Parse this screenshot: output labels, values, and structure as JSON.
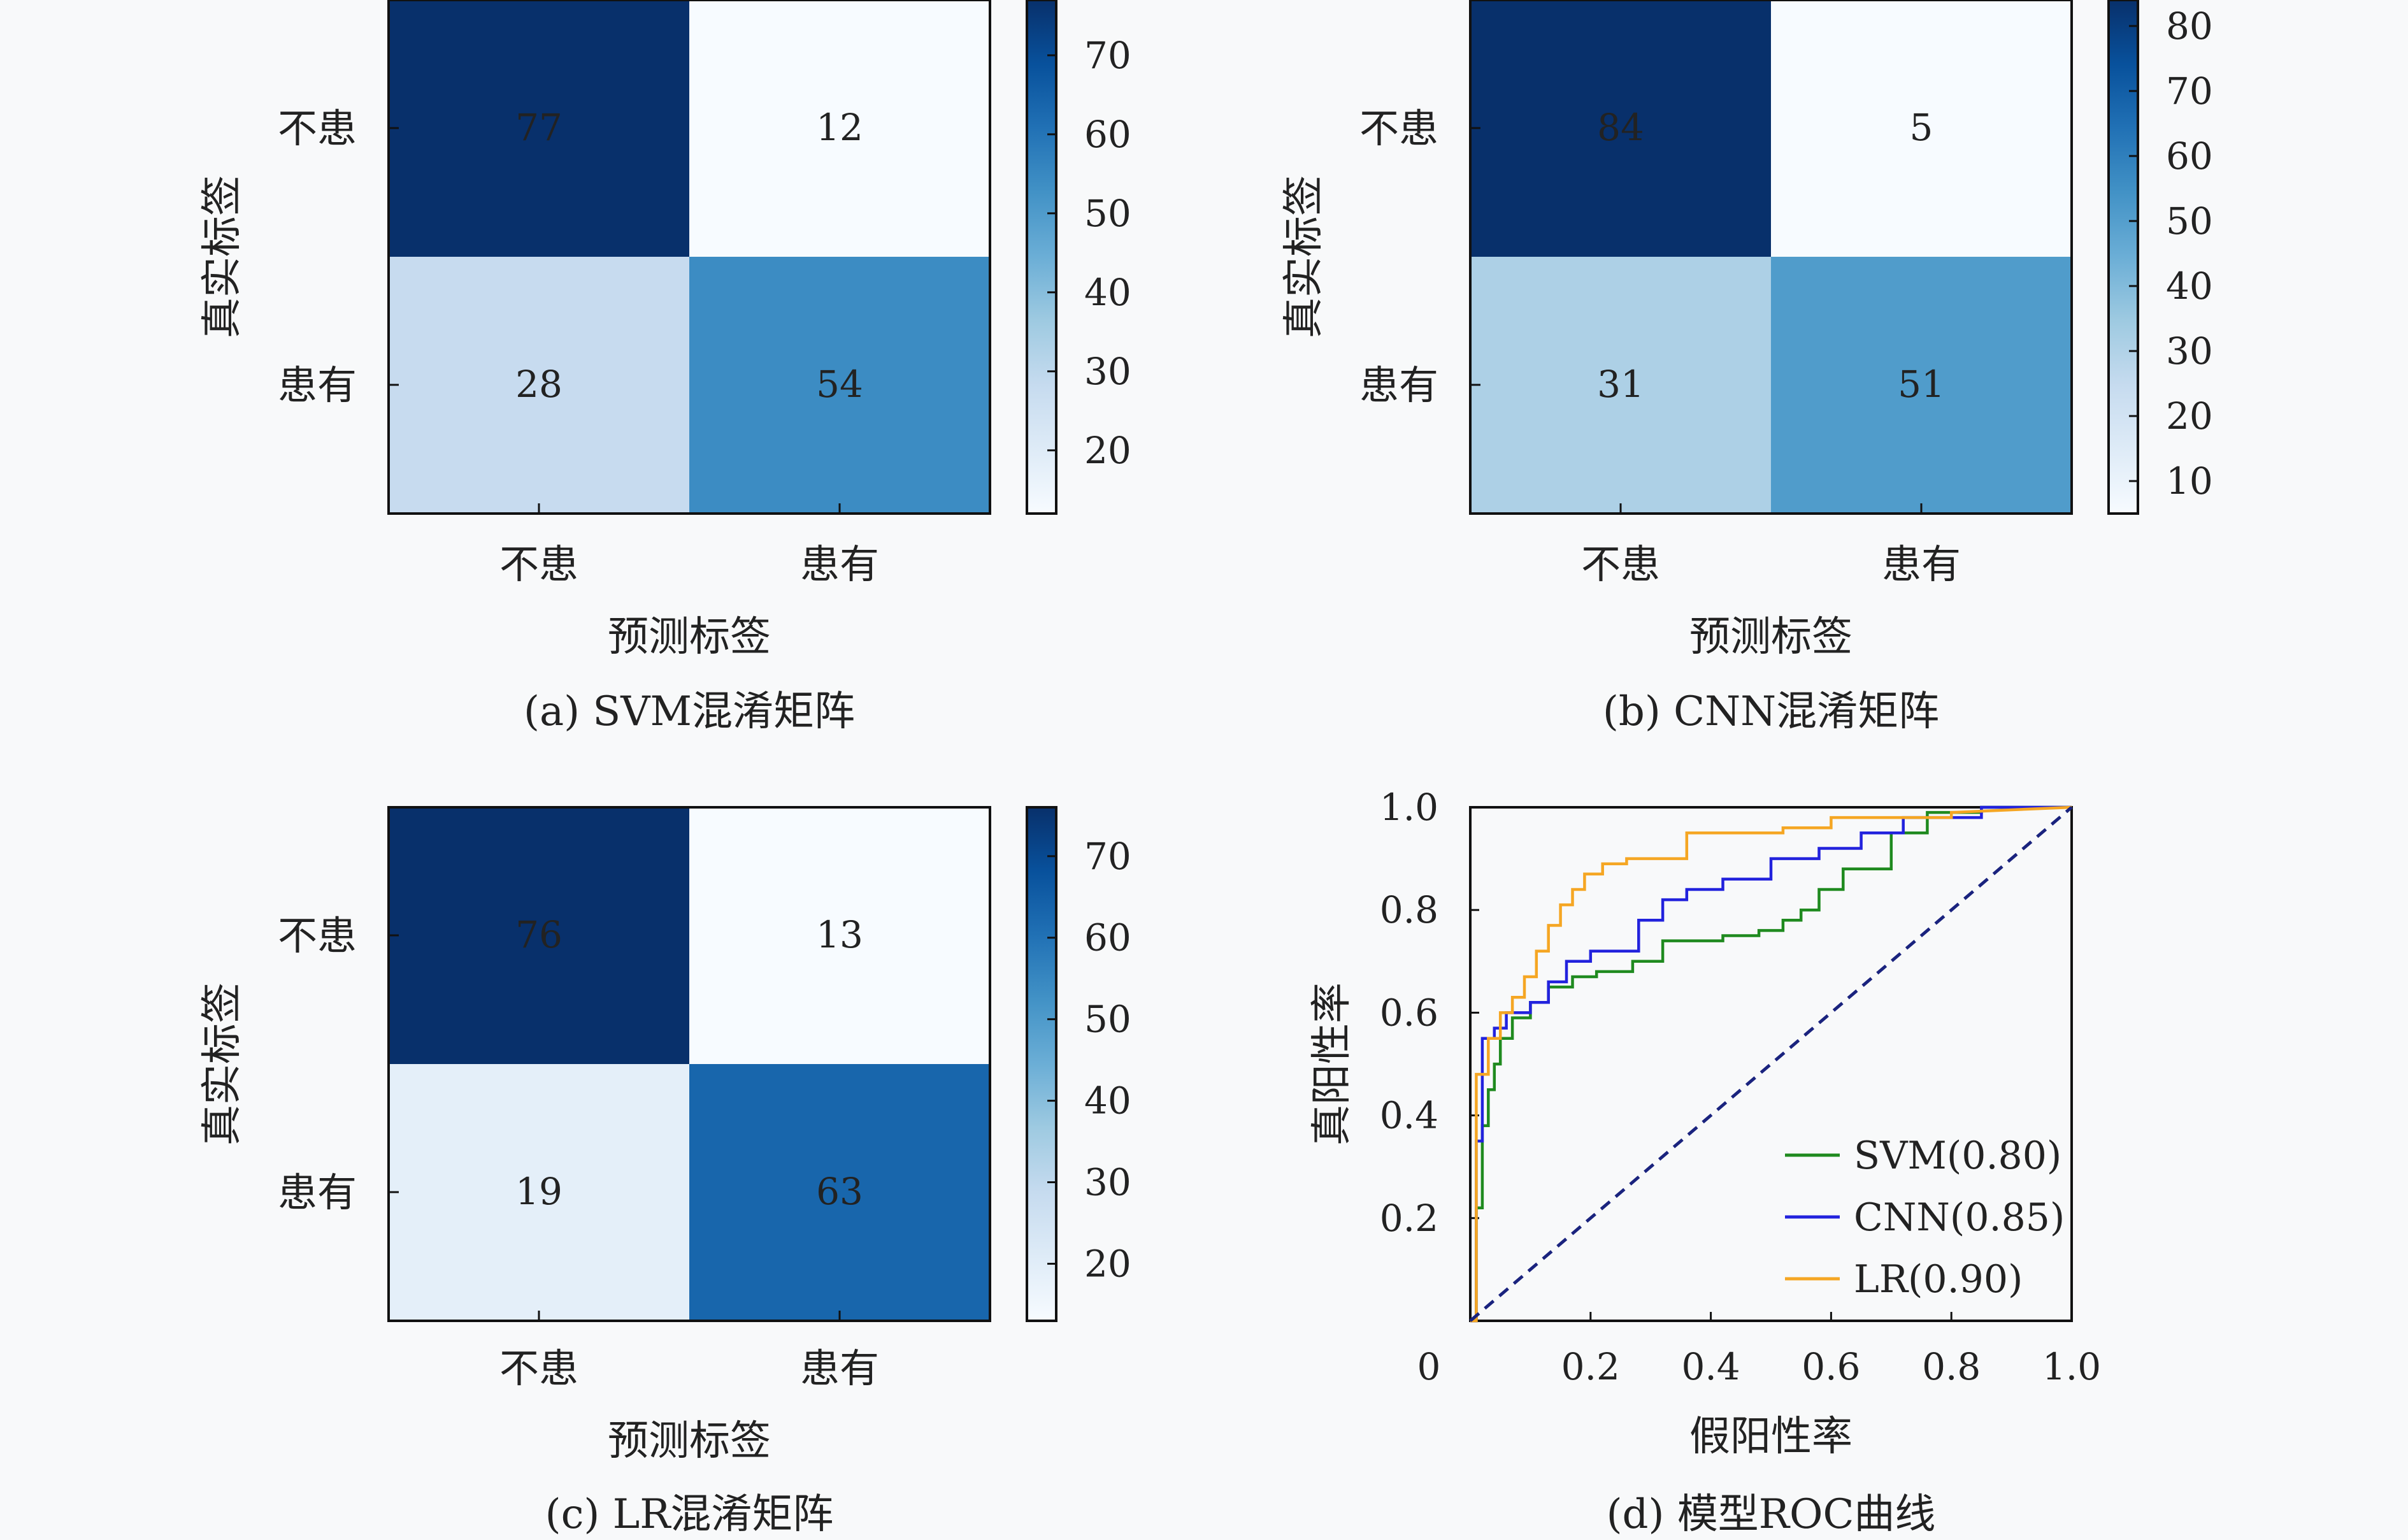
{
  "chart_data": [
    {
      "type": "heatmap",
      "caption": "(a) SVM混淆矩阵",
      "xlabel": "预测标签",
      "ylabel": "真实标签",
      "x_categories": [
        "不患",
        "患有"
      ],
      "y_categories": [
        "不患",
        "患有"
      ],
      "values": [
        [
          77,
          12
        ],
        [
          28,
          54
        ]
      ],
      "colorbar_ticks": [
        20,
        30,
        40,
        50,
        60,
        70
      ],
      "vmin": 12,
      "vmax": 77,
      "colormap": "Blues"
    },
    {
      "type": "heatmap",
      "caption": "(b) CNN混淆矩阵",
      "xlabel": "预测标签",
      "ylabel": "真实标签",
      "x_categories": [
        "不患",
        "患有"
      ],
      "y_categories": [
        "不患",
        "患有"
      ],
      "values": [
        [
          84,
          5
        ],
        [
          31,
          51
        ]
      ],
      "colorbar_ticks": [
        10,
        20,
        30,
        40,
        50,
        60,
        70,
        80
      ],
      "vmin": 5,
      "vmax": 84,
      "colormap": "Blues"
    },
    {
      "type": "heatmap",
      "caption": "(c) LR混淆矩阵",
      "xlabel": "预测标签",
      "ylabel": "真实标签",
      "x_categories": [
        "不患",
        "患有"
      ],
      "y_categories": [
        "不患",
        "患有"
      ],
      "values": [
        [
          76,
          13
        ],
        [
          19,
          63
        ]
      ],
      "colorbar_ticks": [
        20,
        30,
        40,
        50,
        60,
        70
      ],
      "vmin": 13,
      "vmax": 76,
      "colormap": "Blues"
    },
    {
      "type": "line",
      "caption": "(d) 模型ROC曲线",
      "xlabel": "假阳性率",
      "ylabel": "真阳性率",
      "xlim": [
        0,
        1
      ],
      "ylim": [
        0,
        1
      ],
      "x_ticks": [
        "0",
        "0.2",
        "0.4",
        "0.6",
        "0.8",
        "1.0"
      ],
      "y_ticks": [
        "0.2",
        "0.4",
        "0.6",
        "0.8",
        "1.0"
      ],
      "legend_position": "lower-right",
      "series": [
        {
          "name": "SVM(0.80)",
          "color": "#1f8a1f",
          "x": [
            0,
            0.01,
            0.01,
            0.02,
            0.02,
            0.03,
            0.03,
            0.04,
            0.04,
            0.05,
            0.05,
            0.07,
            0.07,
            0.1,
            0.1,
            0.13,
            0.13,
            0.17,
            0.17,
            0.21,
            0.21,
            0.27,
            0.27,
            0.32,
            0.32,
            0.42,
            0.42,
            0.48,
            0.48,
            0.52,
            0.52,
            0.55,
            0.55,
            0.58,
            0.58,
            0.62,
            0.62,
            0.7,
            0.7,
            0.76,
            0.76,
            0.85,
            0.85,
            1.0
          ],
          "y": [
            0,
            0,
            0.22,
            0.22,
            0.38,
            0.38,
            0.45,
            0.45,
            0.5,
            0.5,
            0.55,
            0.55,
            0.59,
            0.59,
            0.62,
            0.62,
            0.65,
            0.65,
            0.67,
            0.67,
            0.68,
            0.68,
            0.7,
            0.7,
            0.74,
            0.74,
            0.75,
            0.75,
            0.76,
            0.76,
            0.78,
            0.78,
            0.8,
            0.8,
            0.84,
            0.84,
            0.88,
            0.88,
            0.95,
            0.95,
            0.99,
            0.99,
            1.0,
            1.0
          ]
        },
        {
          "name": "CNN(0.85)",
          "color": "#2222dd",
          "x": [
            0,
            0.01,
            0.01,
            0.02,
            0.02,
            0.04,
            0.04,
            0.06,
            0.06,
            0.1,
            0.1,
            0.13,
            0.13,
            0.16,
            0.16,
            0.2,
            0.2,
            0.28,
            0.28,
            0.32,
            0.32,
            0.36,
            0.36,
            0.42,
            0.42,
            0.5,
            0.5,
            0.58,
            0.58,
            0.65,
            0.65,
            0.72,
            0.72,
            0.85,
            0.85,
            1.0
          ],
          "y": [
            0,
            0,
            0.35,
            0.35,
            0.55,
            0.55,
            0.57,
            0.57,
            0.6,
            0.6,
            0.62,
            0.62,
            0.66,
            0.66,
            0.7,
            0.7,
            0.72,
            0.72,
            0.78,
            0.78,
            0.82,
            0.82,
            0.84,
            0.84,
            0.86,
            0.86,
            0.9,
            0.9,
            0.92,
            0.92,
            0.95,
            0.95,
            0.98,
            0.98,
            1.0,
            1.0
          ]
        },
        {
          "name": "LR(0.90)",
          "color": "#f5a623",
          "x": [
            0,
            0.01,
            0.01,
            0.03,
            0.03,
            0.05,
            0.05,
            0.07,
            0.07,
            0.09,
            0.09,
            0.11,
            0.11,
            0.13,
            0.13,
            0.15,
            0.15,
            0.17,
            0.17,
            0.19,
            0.19,
            0.22,
            0.22,
            0.26,
            0.26,
            0.36,
            0.36,
            0.52,
            0.52,
            0.6,
            0.6,
            0.8,
            0.8,
            1.0
          ],
          "y": [
            0,
            0,
            0.48,
            0.48,
            0.55,
            0.55,
            0.6,
            0.6,
            0.63,
            0.63,
            0.67,
            0.67,
            0.72,
            0.72,
            0.77,
            0.77,
            0.81,
            0.81,
            0.84,
            0.84,
            0.87,
            0.87,
            0.89,
            0.89,
            0.9,
            0.9,
            0.95,
            0.95,
            0.96,
            0.96,
            0.98,
            0.98,
            0.99,
            1.0
          ]
        },
        {
          "name": "",
          "color": "#1a237e",
          "dashed": true,
          "x": [
            0,
            1
          ],
          "y": [
            0,
            1
          ]
        }
      ]
    }
  ]
}
